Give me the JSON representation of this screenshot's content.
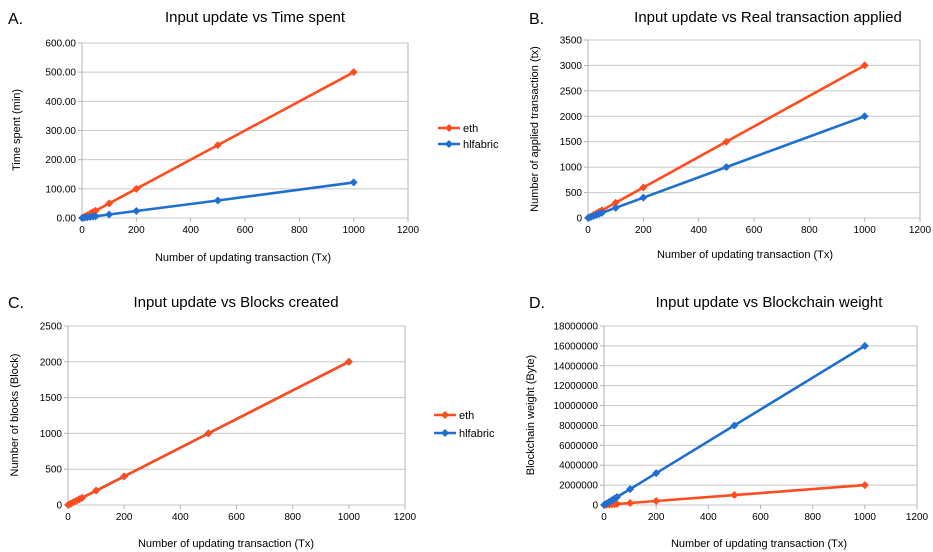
{
  "colors": {
    "eth": "#ff4d1f",
    "hlfabric": "#1f6fd1",
    "grid": "#c8c8c8",
    "plot_border": "#b3b3b3"
  },
  "chart_data": [
    {
      "panel": "A.",
      "type": "line",
      "title": "Input update vs Time spent",
      "xlabel": "Number of updating transaction (Tx)",
      "ylabel": "Time spent (min)",
      "xlim": [
        0,
        1200
      ],
      "ylim": [
        0,
        600
      ],
      "x_ticks": [
        0,
        200,
        400,
        600,
        800,
        1000,
        1200
      ],
      "y_ticks": [
        0,
        100,
        200,
        300,
        400,
        500,
        600
      ],
      "x_tick_labels": [
        "0",
        "200",
        "400",
        "600",
        "800",
        "1000",
        "1200"
      ],
      "y_tick_labels": [
        "0.00",
        "100.00",
        "200.00",
        "300.00",
        "400.00",
        "500.00",
        "600.00"
      ],
      "grid": "horizontal",
      "legend": "right",
      "series": [
        {
          "name": "eth",
          "color": "#ff4d1f",
          "x": [
            1,
            10,
            20,
            30,
            40,
            50,
            100,
            200,
            500,
            1000
          ],
          "y": [
            0.5,
            5,
            10,
            15,
            20,
            25,
            50,
            100,
            250,
            500
          ]
        },
        {
          "name": "hlfabric",
          "color": "#1f6fd1",
          "x": [
            1,
            10,
            20,
            30,
            40,
            50,
            100,
            200,
            500,
            1000
          ],
          "y": [
            0.12,
            1.2,
            2.5,
            3.7,
            5,
            6,
            12,
            24,
            60,
            122
          ]
        }
      ]
    },
    {
      "panel": "B.",
      "type": "line",
      "title": "Input update vs Real transaction applied",
      "xlabel": "Number of updating transaction (Tx)",
      "ylabel": "Number of applied transaction (tx)",
      "xlim": [
        0,
        1200
      ],
      "ylim": [
        0,
        3500
      ],
      "x_ticks": [
        0,
        200,
        400,
        600,
        800,
        1000,
        1200
      ],
      "y_ticks": [
        0,
        500,
        1000,
        1500,
        2000,
        2500,
        3000,
        3500
      ],
      "x_tick_labels": [
        "0",
        "200",
        "400",
        "600",
        "800",
        "1000",
        "1200"
      ],
      "y_tick_labels": [
        "0",
        "500",
        "1000",
        "1500",
        "2000",
        "2500",
        "3000",
        "3500"
      ],
      "grid": "horizontal",
      "legend": "none",
      "series": [
        {
          "name": "eth",
          "color": "#ff4d1f",
          "x": [
            1,
            10,
            20,
            30,
            40,
            50,
            100,
            200,
            500,
            1000
          ],
          "y": [
            3,
            30,
            60,
            90,
            120,
            150,
            300,
            600,
            1500,
            3000
          ]
        },
        {
          "name": "hlfabric",
          "color": "#1f6fd1",
          "x": [
            1,
            10,
            20,
            30,
            40,
            50,
            100,
            200,
            500,
            1000
          ],
          "y": [
            2,
            20,
            40,
            60,
            80,
            100,
            200,
            400,
            1000,
            2000
          ]
        }
      ]
    },
    {
      "panel": "C.",
      "type": "line",
      "title": "Input update vs Blocks created",
      "xlabel": "Number of updating transaction (Tx)",
      "ylabel": "Number of blocks (Block)",
      "xlim": [
        0,
        1200
      ],
      "ylim": [
        0,
        2500
      ],
      "x_ticks": [
        0,
        200,
        400,
        600,
        800,
        1000,
        1200
      ],
      "y_ticks": [
        0,
        500,
        1000,
        1500,
        2000,
        2500
      ],
      "x_tick_labels": [
        "0",
        "200",
        "400",
        "600",
        "800",
        "1000",
        "1200"
      ],
      "y_tick_labels": [
        "0",
        "500",
        "1000",
        "1500",
        "2000",
        "2500"
      ],
      "grid": "horizontal",
      "legend": "right",
      "series": [
        {
          "name": "hlfabric",
          "color": "#1f6fd1",
          "x": [
            1,
            10,
            20,
            30,
            40,
            50,
            100,
            200,
            500,
            1000
          ],
          "y": [
            2,
            20,
            40,
            60,
            80,
            100,
            200,
            400,
            1000,
            2000
          ]
        },
        {
          "name": "eth",
          "color": "#ff4d1f",
          "x": [
            1,
            10,
            20,
            30,
            40,
            50,
            100,
            200,
            500,
            1000
          ],
          "y": [
            2,
            20,
            40,
            60,
            80,
            100,
            200,
            400,
            1000,
            2000
          ]
        }
      ]
    },
    {
      "panel": "D.",
      "type": "line",
      "title": "Input update vs Blockchain weight",
      "xlabel": "Number of updating transaction (Tx)",
      "ylabel": "Blockchain weight (Byte)",
      "xlim": [
        0,
        1200
      ],
      "ylim": [
        0,
        18000000
      ],
      "x_ticks": [
        0,
        200,
        400,
        600,
        800,
        1000,
        1200
      ],
      "y_ticks": [
        0,
        2000000,
        4000000,
        6000000,
        8000000,
        10000000,
        12000000,
        14000000,
        16000000,
        18000000
      ],
      "x_tick_labels": [
        "0",
        "200",
        "400",
        "600",
        "800",
        "1000",
        "1200"
      ],
      "y_tick_labels": [
        "0",
        "2000000",
        "4000000",
        "6000000",
        "8000000",
        "10000000",
        "12000000",
        "14000000",
        "16000000",
        "18000000"
      ],
      "grid": "horizontal",
      "legend": "none",
      "series": [
        {
          "name": "eth",
          "color": "#ff4d1f",
          "x": [
            1,
            10,
            20,
            30,
            40,
            50,
            100,
            200,
            500,
            1000
          ],
          "y": [
            2000,
            20000,
            40000,
            60000,
            80000,
            100000,
            200000,
            400000,
            1000000,
            2000000
          ]
        },
        {
          "name": "hlfabric",
          "color": "#1f6fd1",
          "x": [
            1,
            10,
            20,
            30,
            40,
            50,
            100,
            200,
            500,
            1000
          ],
          "y": [
            16000,
            160000,
            320000,
            480000,
            640000,
            800000,
            1600000,
            3200000,
            8000000,
            16000000
          ]
        }
      ]
    }
  ],
  "legend_entries": [
    "eth",
    "hlfabric"
  ]
}
